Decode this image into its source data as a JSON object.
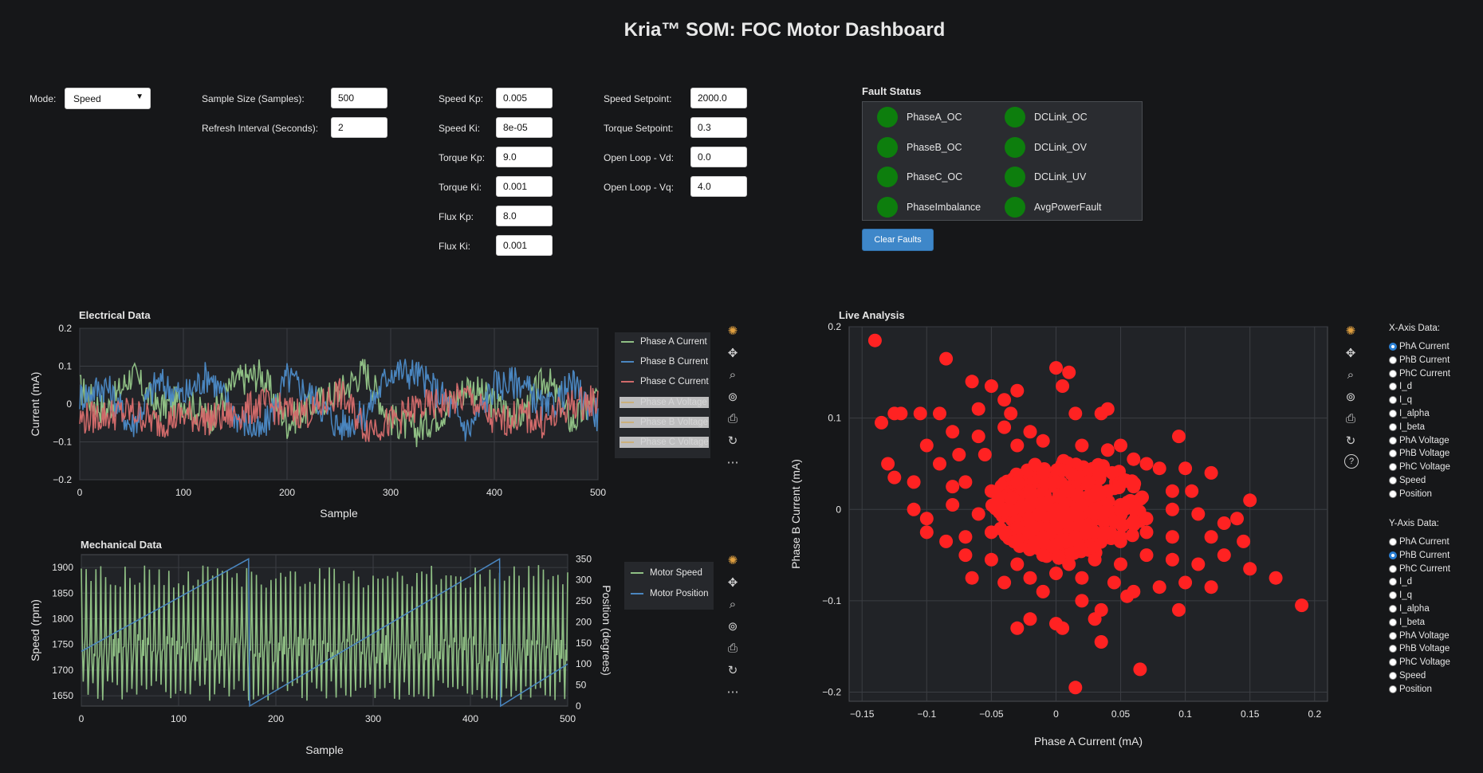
{
  "title": "Kria™ SOM: FOC Motor Dashboard",
  "controls": {
    "mode_label": "Mode:",
    "mode_value": "Speed",
    "sample_size_label": "Sample Size (Samples):",
    "sample_size_value": "500",
    "refresh_label": "Refresh Interval (Seconds):",
    "refresh_value": "2",
    "gains": [
      {
        "label": "Speed Kp:",
        "value": "0.005"
      },
      {
        "label": "Speed Ki:",
        "value": "8e-05"
      },
      {
        "label": "Torque Kp:",
        "value": "9.0"
      },
      {
        "label": "Torque Ki:",
        "value": "0.001"
      },
      {
        "label": "Flux Kp:",
        "value": "8.0"
      },
      {
        "label": "Flux Ki:",
        "value": "0.001"
      }
    ],
    "setpoints": [
      {
        "label": "Speed Setpoint:",
        "value": "2000.0"
      },
      {
        "label": "Torque Setpoint:",
        "value": "0.3"
      },
      {
        "label": "Open Loop - Vd:",
        "value": "0.0"
      },
      {
        "label": "Open Loop - Vq:",
        "value": "4.0"
      }
    ]
  },
  "fault_status": {
    "title": "Fault Status",
    "items": [
      "PhaseA_OC",
      "DCLink_OC",
      "PhaseB_OC",
      "DCLink_OV",
      "PhaseC_OC",
      "DCLink_UV",
      "PhaseImbalance",
      "AvgPowerFault"
    ],
    "led_color": "#0d7e0d",
    "clear_button": "Clear Faults"
  },
  "colors": {
    "phase_a": "#8fbf84",
    "phase_b": "#4a86c0",
    "phase_c": "#d06a6a",
    "scatter": "#ff2222",
    "speed": "#8fbf84",
    "position": "#4a86c0"
  },
  "toolbar_icons": [
    "bokeh-logo-icon",
    "pan-icon",
    "zoom-icon",
    "wheel-zoom-icon",
    "save-icon",
    "reset-icon",
    "more-icon",
    "help-icon"
  ],
  "electrical_chart": {
    "title": "Electrical Data",
    "xlabel": "Sample",
    "ylabel": "Current (mA)",
    "xticks": [
      "0",
      "100",
      "200",
      "300",
      "400",
      "500"
    ],
    "yticks": [
      "0.2",
      "0.1",
      "0",
      "−0.1",
      "−0.2"
    ],
    "legend": [
      "Phase A Current",
      "Phase B Current",
      "Phase C Current",
      "Phase A Voltage",
      "Phase B Voltage",
      "Phase C Voltage"
    ]
  },
  "mechanical_chart": {
    "title": "Mechanical Data",
    "xlabel": "Sample",
    "ylabel": "Speed (rpm)",
    "y2label": "Position (degrees)",
    "xticks": [
      "0",
      "100",
      "200",
      "300",
      "400",
      "500"
    ],
    "yticks": [
      "1900",
      "1850",
      "1800",
      "1750",
      "1700",
      "1650"
    ],
    "y2ticks": [
      "350",
      "300",
      "250",
      "200",
      "150",
      "100",
      "50",
      "0"
    ],
    "legend": [
      "Motor Speed",
      "Motor Position"
    ]
  },
  "live_chart": {
    "title": "Live Analysis",
    "xlabel": "Phase A Current (mA)",
    "ylabel": "Phase B Current (mA)",
    "xticks": [
      "−0.15",
      "−0.1",
      "−0.05",
      "0",
      "0.05",
      "0.1",
      "0.15",
      "0.2"
    ],
    "yticks": [
      "0.2",
      "0.1",
      "0",
      "−0.1",
      "−0.2"
    ]
  },
  "axis_selectors": {
    "x_title": "X-Axis Data:",
    "y_title": "Y-Axis Data:",
    "options": [
      "PhA Current",
      "PhB Current",
      "PhC Current",
      "I_d",
      "I_q",
      "I_alpha",
      "I_beta",
      "PhA Voltage",
      "PhB Voltage",
      "PhC Voltage",
      "Speed",
      "Position"
    ],
    "x_selected": "PhA Current",
    "y_selected": "PhB Current"
  },
  "chart_data": [
    {
      "type": "line",
      "title": "Electrical Data",
      "xlabel": "Sample",
      "ylabel": "Current (mA)",
      "xlim": [
        0,
        500
      ],
      "ylim": [
        -0.2,
        0.2
      ],
      "series": [
        {
          "name": "Phase A Current",
          "x": [
            0,
            25,
            50,
            75,
            100,
            125,
            150,
            175,
            200,
            225,
            250,
            275,
            300,
            325,
            350,
            375,
            400,
            425,
            450,
            475,
            500
          ],
          "values": [
            0.04,
            -0.02,
            0.08,
            -0.01,
            0.01,
            -0.04,
            0.06,
            0.08,
            -0.05,
            0.0,
            0.03,
            0.09,
            -0.04,
            -0.07,
            -0.02,
            0.05,
            0.0,
            -0.03,
            0.07,
            -0.05,
            0.02
          ]
        },
        {
          "name": "Phase B Current",
          "x": [
            0,
            25,
            50,
            75,
            100,
            125,
            150,
            175,
            200,
            225,
            250,
            275,
            300,
            325,
            350,
            375,
            400,
            425,
            450,
            475,
            500
          ],
          "values": [
            0.02,
            0.05,
            -0.06,
            0.06,
            0.02,
            0.08,
            -0.03,
            -0.08,
            0.07,
            0.02,
            -0.06,
            -0.03,
            0.09,
            0.08,
            0.02,
            -0.07,
            0.05,
            0.06,
            -0.02,
            0.05,
            -0.03
          ]
        },
        {
          "name": "Phase C Current",
          "x": [
            0,
            25,
            50,
            75,
            100,
            125,
            150,
            175,
            200,
            225,
            250,
            275,
            300,
            325,
            350,
            375,
            400,
            425,
            450,
            475,
            500
          ],
          "values": [
            -0.04,
            -0.03,
            -0.02,
            -0.05,
            -0.03,
            -0.04,
            -0.03,
            0.0,
            -0.02,
            -0.02,
            0.03,
            -0.06,
            -0.05,
            -0.01,
            0.0,
            0.02,
            -0.05,
            -0.03,
            -0.05,
            0.0,
            0.01
          ]
        }
      ],
      "legend_inactive": [
        "Phase A Voltage",
        "Phase B Voltage",
        "Phase C Voltage"
      ]
    },
    {
      "type": "line",
      "title": "Mechanical Data",
      "xlabel": "Sample",
      "ylabel": "Speed (rpm)",
      "y2label": "Position (degrees)",
      "xlim": [
        0,
        500
      ],
      "ylim": [
        1630,
        1925
      ],
      "y2lim": [
        0,
        360
      ],
      "series": [
        {
          "name": "Motor Speed",
          "x": [
            0,
            10,
            20,
            30,
            40,
            50,
            60,
            70,
            80,
            90,
            100,
            110,
            120,
            130,
            140,
            150,
            160,
            170,
            180,
            190,
            200,
            210,
            220,
            230,
            240,
            250,
            260,
            270,
            280,
            290,
            300,
            310,
            320,
            330,
            340,
            350,
            360,
            370,
            380,
            390,
            400,
            410,
            420,
            430,
            440,
            450,
            460,
            470,
            480,
            490,
            500
          ],
          "values": [
            1760,
            1890,
            1660,
            1880,
            1650,
            1880,
            1670,
            1890,
            1660,
            1880,
            1650,
            1880,
            1660,
            1890,
            1670,
            1880,
            1650,
            1890,
            1660,
            1880,
            1670,
            1890,
            1660,
            1880,
            1650,
            1880,
            1660,
            1890,
            1670,
            1880,
            1660,
            1890,
            1650,
            1880,
            1670,
            1880,
            1660,
            1890,
            1650,
            1880,
            1660,
            1890,
            1670,
            1880,
            1650,
            1880,
            1660,
            1890,
            1670,
            1880,
            1730
          ]
        },
        {
          "name": "Motor Position",
          "y_axis": "right",
          "x": [
            0,
            172,
            173,
            430,
            431,
            500
          ],
          "values": [
            130,
            350,
            0,
            350,
            0,
            100
          ]
        }
      ]
    },
    {
      "type": "scatter",
      "title": "Live Analysis",
      "xlabel": "Phase A Current (mA)",
      "ylabel": "Phase B Current (mA)",
      "xlim": [
        -0.16,
        0.21
      ],
      "ylim": [
        -0.21,
        0.2
      ],
      "points": [
        [
          -0.14,
          0.185
        ],
        [
          -0.135,
          0.095
        ],
        [
          -0.085,
          0.165
        ],
        [
          -0.065,
          0.14
        ],
        [
          -0.05,
          0.135
        ],
        [
          -0.03,
          0.13
        ],
        [
          0.0,
          0.155
        ],
        [
          0.01,
          0.15
        ],
        [
          0.005,
          0.135
        ],
        [
          -0.125,
          0.105
        ],
        [
          -0.12,
          0.105
        ],
        [
          -0.105,
          0.105
        ],
        [
          -0.09,
          0.105
        ],
        [
          -0.06,
          0.11
        ],
        [
          -0.04,
          0.12
        ],
        [
          -0.035,
          0.105
        ],
        [
          0.015,
          0.105
        ],
        [
          0.035,
          0.105
        ],
        [
          0.04,
          0.11
        ],
        [
          -0.13,
          0.05
        ],
        [
          -0.125,
          0.035
        ],
        [
          -0.1,
          0.07
        ],
        [
          -0.08,
          0.085
        ],
        [
          -0.075,
          0.06
        ],
        [
          -0.06,
          0.08
        ],
        [
          -0.055,
          0.06
        ],
        [
          -0.04,
          0.09
        ],
        [
          -0.03,
          0.07
        ],
        [
          -0.02,
          0.085
        ],
        [
          -0.01,
          0.075
        ],
        [
          0.02,
          0.07
        ],
        [
          0.04,
          0.065
        ],
        [
          0.05,
          0.07
        ],
        [
          0.06,
          0.055
        ],
        [
          0.07,
          0.05
        ],
        [
          0.095,
          0.08
        ],
        [
          0.08,
          0.045
        ],
        [
          0.1,
          0.045
        ],
        [
          0.12,
          0.04
        ],
        [
          -0.11,
          0.03
        ],
        [
          -0.09,
          0.05
        ],
        [
          -0.08,
          0.025
        ],
        [
          -0.07,
          0.03
        ],
        [
          -0.05,
          0.02
        ],
        [
          -0.03,
          0.03
        ],
        [
          -0.02,
          0.02
        ],
        [
          -0.01,
          0.04
        ],
        [
          0.0,
          0.03
        ],
        [
          0.01,
          0.02
        ],
        [
          0.025,
          0.03
        ],
        [
          0.04,
          0.02
        ],
        [
          0.06,
          0.025
        ],
        [
          0.09,
          0.02
        ],
        [
          0.105,
          0.02
        ],
        [
          -0.11,
          0.0
        ],
        [
          -0.1,
          -0.01
        ],
        [
          -0.08,
          0.005
        ],
        [
          -0.06,
          -0.005
        ],
        [
          -0.04,
          0.0
        ],
        [
          -0.02,
          0.005
        ],
        [
          0.0,
          0.0
        ],
        [
          0.01,
          -0.005
        ],
        [
          0.02,
          0.005
        ],
        [
          0.03,
          0.0
        ],
        [
          0.05,
          0.005
        ],
        [
          0.07,
          -0.01
        ],
        [
          0.09,
          0.0
        ],
        [
          0.11,
          -0.005
        ],
        [
          0.15,
          0.01
        ],
        [
          0.14,
          -0.01
        ],
        [
          0.13,
          -0.015
        ],
        [
          -0.1,
          -0.025
        ],
        [
          -0.085,
          -0.035
        ],
        [
          -0.07,
          -0.03
        ],
        [
          -0.05,
          -0.025
        ],
        [
          -0.03,
          -0.02
        ],
        [
          -0.01,
          -0.03
        ],
        [
          0.0,
          -0.02
        ],
        [
          0.015,
          -0.03
        ],
        [
          0.03,
          -0.025
        ],
        [
          0.05,
          -0.03
        ],
        [
          0.07,
          -0.025
        ],
        [
          0.09,
          -0.03
        ],
        [
          0.12,
          -0.03
        ],
        [
          0.145,
          -0.035
        ],
        [
          -0.07,
          -0.05
        ],
        [
          -0.05,
          -0.055
        ],
        [
          -0.03,
          -0.06
        ],
        [
          -0.01,
          -0.05
        ],
        [
          0.01,
          -0.06
        ],
        [
          0.03,
          -0.055
        ],
        [
          0.05,
          -0.06
        ],
        [
          0.07,
          -0.05
        ],
        [
          0.09,
          -0.055
        ],
        [
          0.11,
          -0.06
        ],
        [
          0.13,
          -0.05
        ],
        [
          0.15,
          -0.065
        ],
        [
          0.17,
          -0.075
        ],
        [
          -0.065,
          -0.075
        ],
        [
          -0.04,
          -0.08
        ],
        [
          -0.02,
          -0.075
        ],
        [
          0.0,
          -0.07
        ],
        [
          0.02,
          -0.075
        ],
        [
          0.045,
          -0.08
        ],
        [
          0.06,
          -0.09
        ],
        [
          0.08,
          -0.085
        ],
        [
          0.1,
          -0.08
        ],
        [
          0.12,
          -0.085
        ],
        [
          -0.03,
          -0.13
        ],
        [
          -0.01,
          -0.09
        ],
        [
          0.0,
          -0.125
        ],
        [
          0.005,
          -0.13
        ],
        [
          0.02,
          -0.1
        ],
        [
          0.035,
          -0.11
        ],
        [
          0.055,
          -0.095
        ],
        [
          0.095,
          -0.11
        ],
        [
          0.19,
          -0.105
        ],
        [
          0.035,
          -0.145
        ],
        [
          0.065,
          -0.175
        ],
        [
          0.015,
          -0.195
        ],
        [
          -0.02,
          -0.12
        ],
        [
          0.03,
          -0.12
        ]
      ]
    }
  ]
}
